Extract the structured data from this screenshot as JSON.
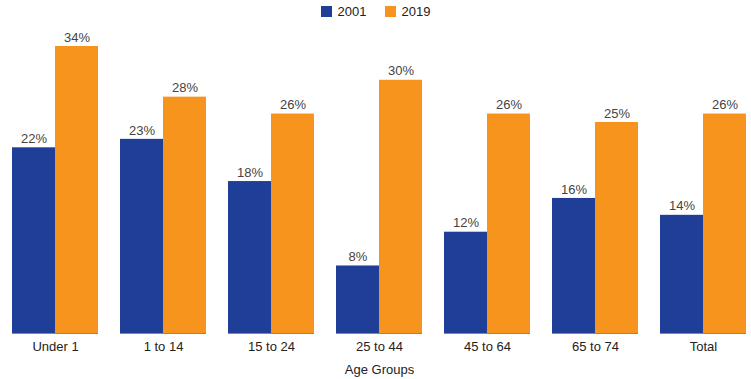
{
  "chart_data": {
    "type": "bar",
    "x_label": "Age Groups",
    "categories": [
      "Under 1",
      "1 to 14",
      "15 to 24",
      "25 to 44",
      "45 to 64",
      "65 to 74",
      "Total"
    ],
    "series": [
      {
        "name": "2001",
        "color": "#1f3e97",
        "values": [
          22,
          23,
          18,
          8,
          12,
          16,
          14
        ],
        "value_labels": [
          "22%",
          "23%",
          "18%",
          "8%",
          "12%",
          "16%",
          "14%"
        ]
      },
      {
        "name": "2019",
        "color": "#f7941d",
        "values": [
          34,
          28,
          26,
          30,
          26,
          25,
          26
        ],
        "value_labels": [
          "34%",
          "28%",
          "26%",
          "30%",
          "26%",
          "25%",
          "26%"
        ]
      }
    ],
    "ylim": [
      0,
      34
    ],
    "legend": "top",
    "data_labels": true,
    "tick_labels": "x"
  }
}
